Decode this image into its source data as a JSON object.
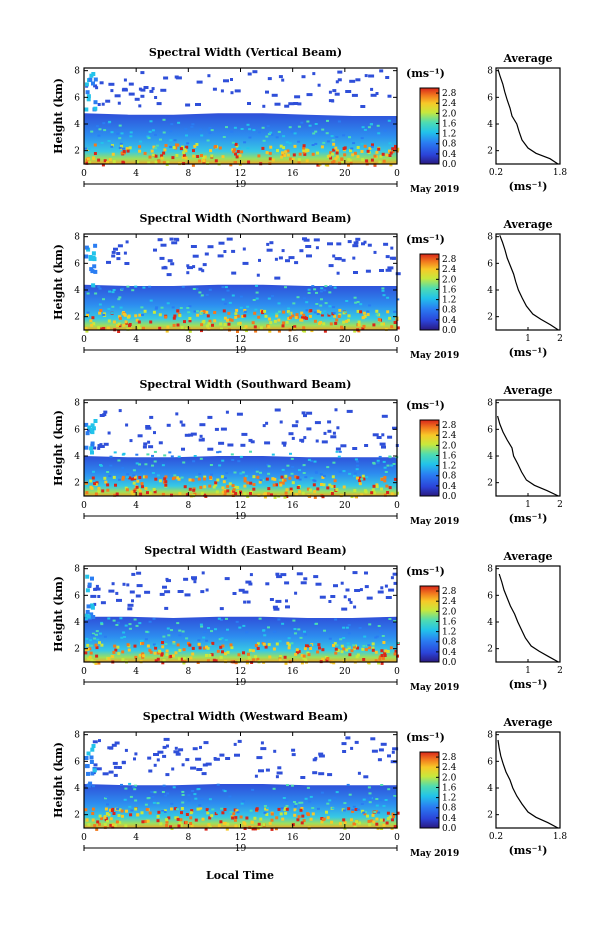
{
  "figure": {
    "x_axis_label": "Local Time",
    "height_axis_label": "Height (km)",
    "date_label": "May 2019",
    "day_label": "19",
    "units_label": "(ms⁻¹)",
    "average_title": "Average",
    "average_xlabel": "(ms⁻¹)"
  },
  "chart_data": [
    {
      "type": "heatmap",
      "title": "Spectral Width (Vertical Beam)",
      "x_ticks": [
        "0",
        "4",
        "8",
        "12",
        "16",
        "20",
        "0"
      ],
      "xlim_hours": [
        0,
        24
      ],
      "y_ticks": [
        "2",
        "4",
        "6",
        "8"
      ],
      "ylim_km": [
        1.0,
        8.2
      ],
      "colorbar_ticks": [
        "0.0",
        "0.4",
        "0.8",
        "1.2",
        "1.6",
        "2.0",
        "2.4",
        "2.8"
      ],
      "colorbar_range": [
        0,
        3.0
      ],
      "layer_top_km": [
        4.8,
        4.7,
        4.7,
        4.8,
        4.8,
        4.7,
        4.6,
        4.6
      ],
      "average": {
        "type": "line",
        "x_ticks": [
          "0.2",
          "1.8"
        ],
        "xlim": [
          0.2,
          1.8
        ],
        "y_ticks": [
          "2",
          "4",
          "6",
          "8"
        ],
        "ylim": [
          1.0,
          8.2
        ],
        "height_km": [
          1.0,
          1.4,
          1.8,
          2.2,
          2.8,
          3.4,
          4.0,
          4.6,
          5.2,
          5.8,
          6.4,
          7.0,
          7.6,
          8.1
        ],
        "width": [
          1.75,
          1.55,
          1.2,
          1.0,
          0.85,
          0.78,
          0.72,
          0.6,
          0.55,
          0.48,
          0.42,
          0.37,
          0.3,
          0.25
        ]
      }
    },
    {
      "type": "heatmap",
      "title": "Spectral Width (Northward Beam)",
      "x_ticks": [
        "0",
        "4",
        "8",
        "12",
        "16",
        "20",
        "0"
      ],
      "xlim_hours": [
        0,
        24
      ],
      "y_ticks": [
        "2",
        "4",
        "6",
        "8"
      ],
      "ylim_km": [
        1.0,
        8.2
      ],
      "colorbar_ticks": [
        "0.0",
        "0.4",
        "0.8",
        "1.2",
        "1.6",
        "2.0",
        "2.4",
        "2.8"
      ],
      "colorbar_range": [
        0,
        3.0
      ],
      "layer_top_km": [
        4.4,
        4.3,
        4.3,
        4.4,
        4.4,
        4.3,
        4.3,
        4.3
      ],
      "average": {
        "type": "line",
        "x_ticks": [
          "1",
          "2"
        ],
        "xlim": [
          0.0,
          2.0
        ],
        "y_ticks": [
          "2",
          "4",
          "6",
          "8"
        ],
        "ylim": [
          1.0,
          8.2
        ],
        "height_km": [
          1.0,
          1.4,
          1.8,
          2.2,
          2.8,
          3.4,
          4.0,
          4.6,
          5.2,
          5.8,
          6.4,
          7.0,
          7.6,
          8.1
        ],
        "width": [
          1.95,
          1.7,
          1.4,
          1.15,
          0.95,
          0.82,
          0.7,
          0.62,
          0.55,
          0.45,
          0.35,
          0.28,
          0.2,
          0.12
        ]
      }
    },
    {
      "type": "heatmap",
      "title": "Spectral Width (Southward Beam)",
      "x_ticks": [
        "0",
        "4",
        "8",
        "12",
        "16",
        "20",
        "0"
      ],
      "xlim_hours": [
        0,
        24
      ],
      "y_ticks": [
        "2",
        "4",
        "6",
        "8"
      ],
      "ylim_km": [
        1.0,
        8.2
      ],
      "colorbar_ticks": [
        "0.0",
        "0.4",
        "0.8",
        "1.2",
        "1.6",
        "2.0",
        "2.4",
        "2.8"
      ],
      "colorbar_range": [
        0,
        3.0
      ],
      "layer_top_km": [
        4.0,
        3.9,
        3.9,
        4.0,
        4.0,
        3.9,
        3.9,
        3.9
      ],
      "average": {
        "type": "line",
        "x_ticks": [
          "1",
          "2"
        ],
        "xlim": [
          0.0,
          2.0
        ],
        "y_ticks": [
          "2",
          "4",
          "6",
          "8"
        ],
        "ylim": [
          1.0,
          8.2
        ],
        "height_km": [
          1.0,
          1.4,
          1.8,
          2.2,
          2.8,
          3.4,
          4.0,
          4.6,
          5.2,
          5.8,
          6.4,
          7.0
        ],
        "width": [
          1.95,
          1.6,
          1.2,
          0.95,
          0.8,
          0.68,
          0.55,
          0.5,
          0.35,
          0.22,
          0.12,
          0.05
        ]
      }
    },
    {
      "type": "heatmap",
      "title": "Spectral Width (Eastward Beam)",
      "x_ticks": [
        "0",
        "4",
        "8",
        "12",
        "16",
        "20",
        "0"
      ],
      "xlim_hours": [
        0,
        24
      ],
      "y_ticks": [
        "2",
        "4",
        "6",
        "8"
      ],
      "ylim_km": [
        1.0,
        8.2
      ],
      "colorbar_ticks": [
        "0.0",
        "0.4",
        "0.8",
        "1.2",
        "1.6",
        "2.0",
        "2.4",
        "2.8"
      ],
      "colorbar_range": [
        0,
        3.0
      ],
      "layer_top_km": [
        4.4,
        4.4,
        4.3,
        4.4,
        4.4,
        4.3,
        4.3,
        4.4
      ],
      "average": {
        "type": "line",
        "x_ticks": [
          "1",
          "2"
        ],
        "xlim": [
          0.0,
          2.0
        ],
        "y_ticks": [
          "2",
          "4",
          "6",
          "8"
        ],
        "ylim": [
          1.0,
          8.2
        ],
        "height_km": [
          1.0,
          1.4,
          1.8,
          2.2,
          2.8,
          3.4,
          4.0,
          4.6,
          5.2,
          5.8,
          6.4,
          7.0,
          7.6
        ],
        "width": [
          1.95,
          1.65,
          1.35,
          1.1,
          0.92,
          0.8,
          0.68,
          0.58,
          0.45,
          0.35,
          0.25,
          0.18,
          0.1
        ]
      }
    },
    {
      "type": "heatmap",
      "title": "Spectral Width (Westward Beam)",
      "x_ticks": [
        "0",
        "4",
        "8",
        "12",
        "16",
        "20",
        "0"
      ],
      "xlim_hours": [
        0,
        24
      ],
      "y_ticks": [
        "2",
        "4",
        "6",
        "8"
      ],
      "ylim_km": [
        1.0,
        8.2
      ],
      "colorbar_ticks": [
        "0.0",
        "0.4",
        "0.8",
        "1.2",
        "1.6",
        "2.0",
        "2.4",
        "2.8"
      ],
      "colorbar_range": [
        0,
        3.0
      ],
      "layer_top_km": [
        4.3,
        4.2,
        4.2,
        4.3,
        4.3,
        4.2,
        4.2,
        4.2
      ],
      "average": {
        "type": "line",
        "x_ticks": [
          "0.2",
          "1.8"
        ],
        "xlim": [
          0.2,
          1.8
        ],
        "y_ticks": [
          "2",
          "4",
          "6",
          "8"
        ],
        "ylim": [
          1.0,
          8.2
        ],
        "height_km": [
          1.0,
          1.4,
          1.8,
          2.2,
          2.8,
          3.4,
          4.0,
          4.6,
          5.2,
          5.8,
          6.4,
          7.0,
          7.6
        ],
        "width": [
          1.75,
          1.5,
          1.2,
          1.0,
          0.85,
          0.72,
          0.62,
          0.55,
          0.45,
          0.38,
          0.32,
          0.28,
          0.25
        ]
      }
    }
  ]
}
